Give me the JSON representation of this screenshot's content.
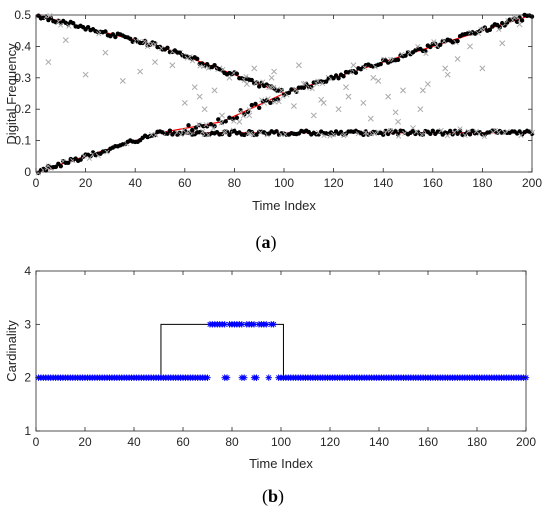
{
  "chart_data": [
    {
      "type": "scatter",
      "caption": "(a)",
      "caption_letter": "a",
      "xlabel": "Time Index",
      "ylabel": "Digital Frequency",
      "xlim": [
        0,
        200
      ],
      "ylim": [
        0,
        0.5
      ],
      "xticks": [
        0,
        20,
        40,
        60,
        80,
        100,
        120,
        140,
        160,
        180,
        200
      ],
      "yticks": [
        0,
        0.1,
        0.2,
        0.3,
        0.4,
        0.5
      ],
      "ytick_labels": [
        "0",
        "0.1",
        "0.2",
        "0.3",
        "0.4",
        "0.5"
      ],
      "grid": false,
      "colors": {
        "estimate": "#000000",
        "truth": "#ff0000",
        "measurement": "#aaaaaa"
      },
      "series": [
        {
          "kind": "truth-line",
          "x": [
            0,
            50,
            100,
            150,
            200
          ],
          "y": [
            0.5,
            0.4,
            0.25,
            0.375,
            0.5
          ]
        },
        {
          "kind": "truth-line",
          "x": [
            0,
            50,
            100,
            150,
            200
          ],
          "y": [
            0.0,
            0.125,
            0.125,
            0.125,
            0.125
          ]
        },
        {
          "kind": "truth-line",
          "x": [
            50,
            75,
            100
          ],
          "y": [
            0.125,
            0.16,
            0.25
          ]
        },
        {
          "kind": "measurement-points",
          "x": [
            5,
            12,
            20,
            28,
            35,
            42,
            48,
            55,
            60,
            64,
            68,
            72,
            75,
            78,
            82,
            85,
            88,
            92,
            95,
            98,
            104,
            108,
            112,
            115,
            118,
            122,
            125,
            128,
            132,
            135,
            138,
            142,
            145,
            148,
            152,
            155,
            158,
            165,
            170,
            175,
            180,
            188,
            195,
            58,
            66,
            74,
            86,
            96,
            106,
            116,
            126,
            136,
            146,
            156,
            166
          ],
          "y": [
            0.35,
            0.42,
            0.31,
            0.38,
            0.29,
            0.32,
            0.35,
            0.34,
            0.22,
            0.27,
            0.2,
            0.26,
            0.18,
            0.3,
            0.16,
            0.28,
            0.33,
            0.22,
            0.3,
            0.26,
            0.21,
            0.28,
            0.18,
            0.23,
            0.3,
            0.2,
            0.27,
            0.34,
            0.22,
            0.17,
            0.29,
            0.24,
            0.19,
            0.26,
            0.14,
            0.2,
            0.28,
            0.33,
            0.36,
            0.4,
            0.33,
            0.41,
            0.47,
            0.38,
            0.24,
            0.33,
            0.18,
            0.32,
            0.34,
            0.22,
            0.24,
            0.3,
            0.16,
            0.26,
            0.31
          ]
        }
      ]
    },
    {
      "type": "scatter",
      "caption": "(b)",
      "caption_letter": "b",
      "xlabel": "Time Index",
      "ylabel": "Cardinality",
      "xlim": [
        0,
        200
      ],
      "ylim": [
        1,
        4
      ],
      "xticks": [
        0,
        20,
        40,
        60,
        80,
        100,
        120,
        140,
        160,
        180,
        200
      ],
      "yticks": [
        1,
        2,
        3,
        4
      ],
      "grid": false,
      "colors": {
        "estimate": "#0000ff",
        "truth": "#000000"
      },
      "truth_steps": {
        "x": [
          1,
          51,
          51,
          101,
          101,
          200
        ],
        "y": [
          2,
          2,
          3,
          3,
          2,
          2
        ]
      },
      "estimates_at_3": [
        71,
        72,
        73,
        74,
        75,
        76,
        77,
        79,
        80,
        81,
        82,
        83,
        84,
        86,
        87,
        88,
        89,
        91,
        92,
        93,
        94,
        96,
        97
      ],
      "estimates_at_2_gaps": [
        71,
        72,
        73,
        74,
        75,
        76,
        79,
        80,
        81,
        82,
        83,
        86,
        87,
        88,
        91,
        92,
        93,
        94,
        96,
        97,
        98
      ]
    }
  ]
}
